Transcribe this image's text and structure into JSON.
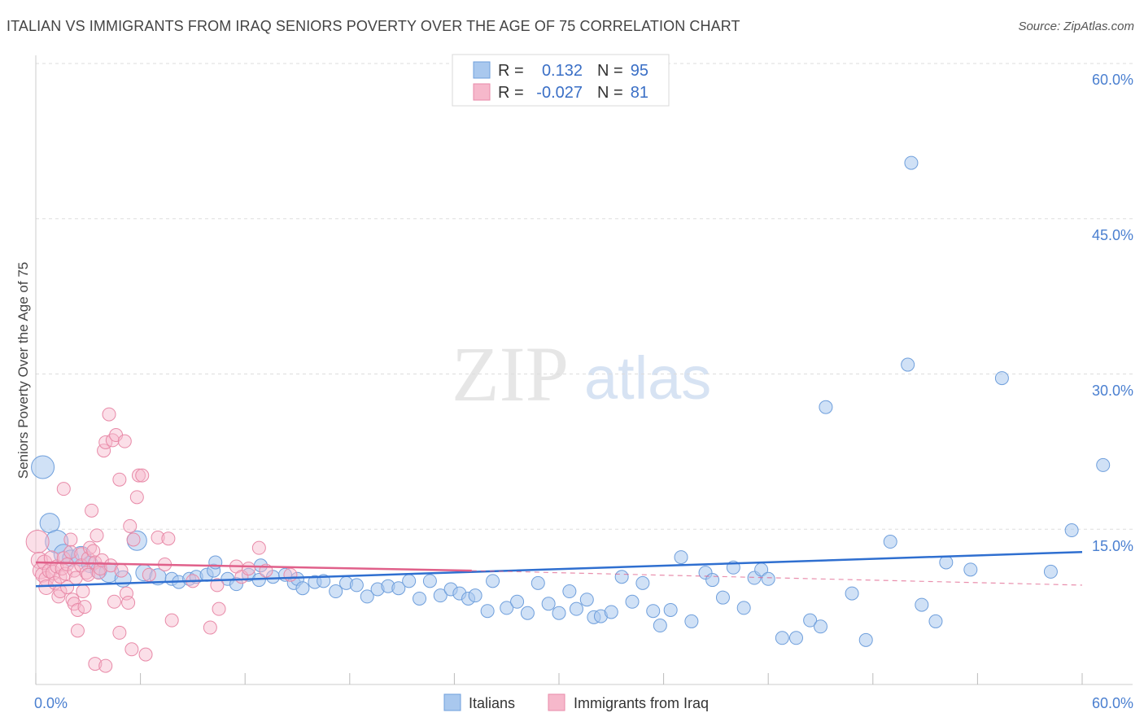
{
  "title": "ITALIAN VS IMMIGRANTS FROM IRAQ SENIORS POVERTY OVER THE AGE OF 75 CORRELATION CHART",
  "source": "Source: ZipAtlas.com",
  "watermark": {
    "zip": "ZIP",
    "atlas": "atlas"
  },
  "colors": {
    "blue_fill": "#a9c8ee",
    "blue_stroke": "#6f9fdc",
    "blue_line": "#2f6fd0",
    "pink_fill": "#f6b8cb",
    "pink_stroke": "#e88aa8",
    "pink_line": "#e0608a",
    "axis_text": "#4a7fd0",
    "grid": "#dddddd"
  },
  "legend": {
    "r_label": "R =",
    "n_label": "N =",
    "series": [
      {
        "r": "0.132",
        "n": "95"
      },
      {
        "r": "-0.027",
        "n": "81"
      }
    ]
  },
  "chart_data": {
    "type": "scatter",
    "title": "ITALIAN VS IMMIGRANTS FROM IRAQ SENIORS POVERTY OVER THE AGE OF 75 CORRELATION CHART",
    "xlabel": "",
    "ylabel": "Seniors Poverty Over the Age of 75",
    "xlim": [
      0,
      60
    ],
    "ylim": [
      0,
      60
    ],
    "x_tick_labels": [
      "0.0%",
      "60.0%"
    ],
    "y_ticks": [
      15,
      30,
      45,
      60
    ],
    "y_tick_labels": [
      "15.0%",
      "30.0%",
      "45.0%",
      "60.0%"
    ],
    "legend_entries": [
      "Italians",
      "Immigrants from Iraq"
    ],
    "series": [
      {
        "name": "Italians",
        "r": 0.132,
        "n": 95,
        "trend": {
          "x": [
            0,
            60
          ],
          "y": [
            9.5,
            12.8
          ]
        },
        "points": [
          [
            0.4,
            21,
            14
          ],
          [
            0.8,
            15.6,
            12
          ],
          [
            1.2,
            13.8,
            14
          ],
          [
            1.6,
            12.6,
            12
          ],
          [
            2.0,
            12.2,
            10
          ],
          [
            2.6,
            12.4,
            12
          ],
          [
            3.1,
            11.6,
            10
          ],
          [
            3.6,
            11.0,
            10
          ],
          [
            4.2,
            10.8,
            12
          ],
          [
            5.0,
            10.2,
            10
          ],
          [
            5.8,
            13.9,
            12
          ],
          [
            6.2,
            10.8,
            10
          ],
          [
            7.0,
            10.4,
            10
          ],
          [
            7.8,
            10.2,
            8
          ],
          [
            8.2,
            9.9,
            8
          ],
          [
            8.8,
            10.2,
            8
          ],
          [
            9.2,
            10.4,
            8
          ],
          [
            9.8,
            10.6,
            8
          ],
          [
            10.2,
            11.0,
            8
          ],
          [
            10.3,
            11.8,
            8
          ],
          [
            11.0,
            10.2,
            8
          ],
          [
            11.5,
            9.7,
            8
          ],
          [
            12.2,
            10.6,
            8
          ],
          [
            12.8,
            10.1,
            8
          ],
          [
            12.9,
            11.5,
            8
          ],
          [
            13.6,
            10.4,
            8
          ],
          [
            14.3,
            10.6,
            8
          ],
          [
            14.8,
            9.8,
            8
          ],
          [
            15.0,
            10.2,
            8
          ],
          [
            15.3,
            9.3,
            8
          ],
          [
            16.0,
            9.9,
            8
          ],
          [
            16.5,
            10.0,
            8
          ],
          [
            17.2,
            9.0,
            8
          ],
          [
            17.8,
            9.8,
            8
          ],
          [
            18.4,
            9.6,
            8
          ],
          [
            19.0,
            8.5,
            8
          ],
          [
            19.6,
            9.2,
            8
          ],
          [
            20.2,
            9.5,
            8
          ],
          [
            20.8,
            9.3,
            8
          ],
          [
            21.4,
            10.0,
            8
          ],
          [
            22.0,
            8.3,
            8
          ],
          [
            22.6,
            10.0,
            8
          ],
          [
            23.2,
            8.6,
            8
          ],
          [
            23.8,
            9.2,
            8
          ],
          [
            24.3,
            8.8,
            8
          ],
          [
            24.8,
            8.3,
            8
          ],
          [
            25.2,
            8.6,
            8
          ],
          [
            25.9,
            7.1,
            8
          ],
          [
            26.2,
            10.0,
            8
          ],
          [
            27.0,
            7.4,
            8
          ],
          [
            27.6,
            8.0,
            8
          ],
          [
            28.2,
            6.9,
            8
          ],
          [
            28.8,
            9.8,
            8
          ],
          [
            29.4,
            7.8,
            8
          ],
          [
            30.0,
            6.9,
            8
          ],
          [
            30.6,
            9.0,
            8
          ],
          [
            31.0,
            7.3,
            8
          ],
          [
            31.6,
            8.2,
            8
          ],
          [
            32.0,
            6.5,
            8
          ],
          [
            32.4,
            6.6,
            8
          ],
          [
            33.0,
            7.0,
            8
          ],
          [
            33.6,
            10.4,
            8
          ],
          [
            34.2,
            8.0,
            8
          ],
          [
            34.8,
            9.8,
            8
          ],
          [
            35.4,
            7.1,
            8
          ],
          [
            35.8,
            5.7,
            8
          ],
          [
            36.4,
            7.2,
            8
          ],
          [
            37.0,
            12.3,
            8
          ],
          [
            37.6,
            6.1,
            8
          ],
          [
            38.4,
            10.8,
            8
          ],
          [
            38.8,
            10.1,
            8
          ],
          [
            39.4,
            8.4,
            8
          ],
          [
            40.0,
            11.3,
            8
          ],
          [
            40.6,
            7.4,
            8
          ],
          [
            41.2,
            10.3,
            8
          ],
          [
            41.6,
            11.1,
            8
          ],
          [
            42.0,
            10.2,
            8
          ],
          [
            42.8,
            4.5,
            8
          ],
          [
            43.6,
            4.5,
            8
          ],
          [
            44.4,
            6.2,
            8
          ],
          [
            45.0,
            5.6,
            8
          ],
          [
            45.3,
            26.8,
            8
          ],
          [
            46.8,
            8.8,
            8
          ],
          [
            47.6,
            4.3,
            8
          ],
          [
            49.0,
            13.8,
            8
          ],
          [
            50.0,
            30.9,
            8
          ],
          [
            50.2,
            50.4,
            8
          ],
          [
            50.8,
            7.7,
            8
          ],
          [
            51.6,
            6.1,
            8
          ],
          [
            52.2,
            11.8,
            8
          ],
          [
            53.6,
            11.1,
            8
          ],
          [
            55.4,
            29.6,
            8
          ],
          [
            58.2,
            10.9,
            8
          ],
          [
            59.4,
            14.9,
            8
          ],
          [
            61.2,
            21.2,
            8
          ]
        ]
      },
      {
        "name": "Immigrants from Iraq",
        "r": -0.027,
        "n": 81,
        "trend": {
          "x": [
            0,
            25
          ],
          "y": [
            11.8,
            11.0
          ],
          "dashed_extension": {
            "x": [
              25,
              60
            ],
            "y": [
              11.0,
              9.6
            ]
          }
        },
        "points": [
          [
            0.1,
            13.8,
            14
          ],
          [
            0.2,
            12.0,
            10
          ],
          [
            0.3,
            11.0,
            10
          ],
          [
            0.4,
            10.6,
            9
          ],
          [
            0.5,
            11.8,
            9
          ],
          [
            0.6,
            10.2,
            9
          ],
          [
            0.6,
            9.4,
            9
          ],
          [
            0.8,
            11.0,
            9
          ],
          [
            0.9,
            12.2,
            9
          ],
          [
            1.0,
            10.8,
            9
          ],
          [
            1.1,
            9.8,
            8
          ],
          [
            1.2,
            11.4,
            8
          ],
          [
            1.3,
            8.5,
            8
          ],
          [
            1.4,
            9.0,
            8
          ],
          [
            1.4,
            10.4,
            8
          ],
          [
            1.5,
            11.2,
            8
          ],
          [
            1.6,
            12.2,
            8
          ],
          [
            1.7,
            10.7,
            8
          ],
          [
            1.8,
            11.6,
            8
          ],
          [
            1.8,
            9.4,
            8
          ],
          [
            1.6,
            18.9,
            8
          ],
          [
            2.0,
            12.8,
            8
          ],
          [
            2.0,
            14.0,
            8
          ],
          [
            2.1,
            8.2,
            8
          ],
          [
            2.2,
            11.0,
            8
          ],
          [
            2.2,
            7.8,
            8
          ],
          [
            2.3,
            10.3,
            8
          ],
          [
            2.4,
            7.2,
            8
          ],
          [
            2.4,
            5.2,
            8
          ],
          [
            2.6,
            12.6,
            8
          ],
          [
            2.6,
            11.5,
            8
          ],
          [
            2.7,
            9.0,
            8
          ],
          [
            2.8,
            7.5,
            8
          ],
          [
            2.9,
            10.8,
            8
          ],
          [
            3.0,
            12.2,
            8
          ],
          [
            3.0,
            10.6,
            8
          ],
          [
            3.1,
            13.2,
            8
          ],
          [
            3.2,
            16.8,
            8
          ],
          [
            3.3,
            12.9,
            8
          ],
          [
            3.4,
            11.8,
            8
          ],
          [
            3.5,
            14.4,
            8
          ],
          [
            3.6,
            10.8,
            8
          ],
          [
            3.7,
            11.2,
            8
          ],
          [
            3.8,
            12.0,
            8
          ],
          [
            3.4,
            2.0,
            8
          ],
          [
            3.9,
            22.6,
            8
          ],
          [
            4.0,
            23.4,
            8
          ],
          [
            4.0,
            1.8,
            8
          ],
          [
            4.2,
            26.1,
            8
          ],
          [
            4.3,
            11.5,
            8
          ],
          [
            4.4,
            23.6,
            8
          ],
          [
            4.5,
            8.0,
            8
          ],
          [
            4.6,
            24.1,
            8
          ],
          [
            4.8,
            19.8,
            8
          ],
          [
            4.9,
            11.0,
            8
          ],
          [
            5.1,
            23.5,
            8
          ],
          [
            5.2,
            8.8,
            8
          ],
          [
            5.3,
            7.9,
            8
          ],
          [
            5.4,
            15.3,
            8
          ],
          [
            5.5,
            3.4,
            8
          ],
          [
            5.6,
            14.0,
            8
          ],
          [
            5.8,
            18.1,
            8
          ],
          [
            5.9,
            20.2,
            8
          ],
          [
            6.1,
            20.2,
            8
          ],
          [
            6.3,
            2.9,
            8
          ],
          [
            6.5,
            10.6,
            8
          ],
          [
            7.0,
            14.2,
            8
          ],
          [
            7.4,
            11.6,
            8
          ],
          [
            7.6,
            14.1,
            8
          ],
          [
            7.8,
            6.2,
            8
          ],
          [
            9.0,
            10.0,
            8
          ],
          [
            10.0,
            5.5,
            8
          ],
          [
            10.4,
            9.6,
            8
          ],
          [
            10.5,
            7.3,
            8
          ],
          [
            11.5,
            11.4,
            8
          ],
          [
            11.8,
            10.4,
            8
          ],
          [
            12.2,
            11.2,
            8
          ],
          [
            12.8,
            13.2,
            8
          ],
          [
            13.2,
            11.0,
            8
          ],
          [
            14.6,
            10.6,
            8
          ],
          [
            4.8,
            5.0,
            8
          ]
        ]
      }
    ]
  }
}
